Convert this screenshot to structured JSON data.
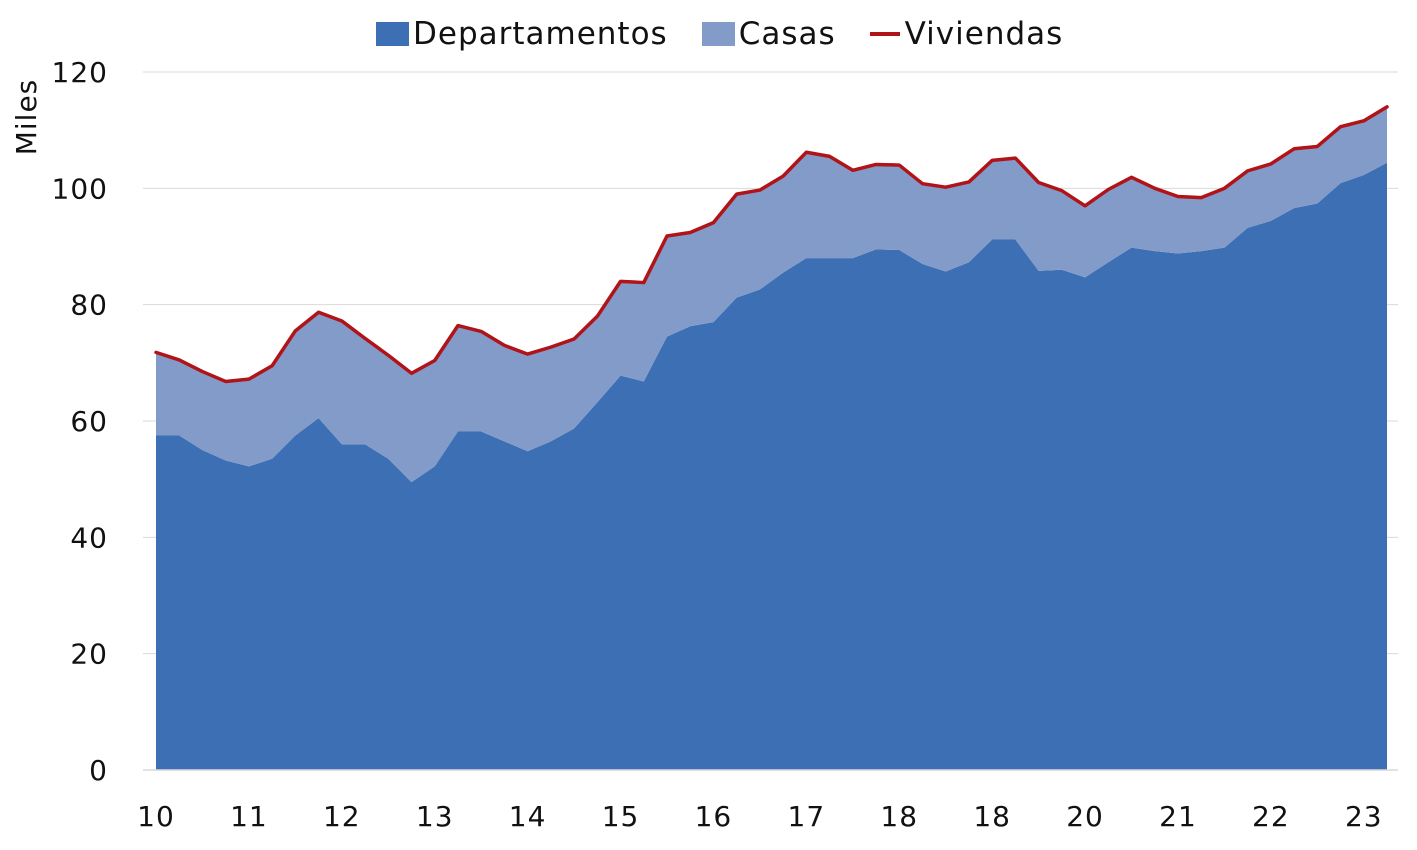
{
  "chart_data": {
    "type": "area",
    "ylabel": "Miles",
    "ylim": [
      0,
      120
    ],
    "yticks": [
      0,
      20,
      40,
      60,
      80,
      100,
      120
    ],
    "grid": true,
    "legend_position": "top-center",
    "x_tick_labels": [
      "10",
      "11",
      "12",
      "13",
      "14",
      "15",
      "16",
      "17",
      "18",
      "18",
      "20",
      "21",
      "22",
      "23"
    ],
    "series": [
      {
        "name": "Departamentos",
        "kind": "area",
        "color": "#3D6FB4",
        "values": [
          57.5,
          57.5,
          55.0,
          53.2,
          52.2,
          53.5,
          57.5,
          60.5,
          56.0,
          56.0,
          53.5,
          49.5,
          52.2,
          58.2,
          58.2,
          56.5,
          54.8,
          56.5,
          58.7,
          63.2,
          67.8,
          66.8,
          74.5,
          76.3,
          77.0,
          81.2,
          82.6,
          85.5,
          88.0,
          88.0,
          88.0,
          89.5,
          89.4,
          87.0,
          85.7,
          87.3,
          91.2,
          91.2,
          85.8,
          86.0,
          84.7,
          87.3,
          89.8,
          89.2,
          88.8,
          89.2,
          89.8,
          93.2,
          94.4,
          96.6,
          97.4,
          100.9,
          102.3,
          104.4
        ]
      },
      {
        "name": "Casas",
        "kind": "area",
        "color": "#829BC8",
        "values": [
          14.3,
          13.0,
          13.5,
          13.6,
          15.0,
          16.0,
          18.0,
          18.2,
          21.2,
          18.2,
          17.8,
          18.7,
          18.2,
          18.2,
          17.2,
          16.5,
          16.7,
          16.2,
          15.4,
          14.8,
          16.2,
          17.0,
          17.3,
          16.1,
          17.1,
          17.8,
          17.1,
          16.6,
          18.2,
          17.5,
          15.1,
          14.6,
          14.6,
          13.8,
          14.5,
          13.8,
          13.6,
          14.0,
          15.2,
          13.6,
          12.3,
          12.5,
          12.1,
          10.8,
          9.8,
          9.2,
          10.2,
          9.8,
          9.8,
          10.2,
          9.8,
          9.7,
          9.3,
          9.6
        ]
      },
      {
        "name": "Viviendas",
        "kind": "line",
        "color": "#B01318",
        "values": [
          71.8,
          70.5,
          68.5,
          66.8,
          67.2,
          69.5,
          75.5,
          78.7,
          77.2,
          74.2,
          71.3,
          68.2,
          70.4,
          76.4,
          75.4,
          73.0,
          71.5,
          72.7,
          74.1,
          78.0,
          84.0,
          83.8,
          91.8,
          92.4,
          94.1,
          99.0,
          99.7,
          102.1,
          106.2,
          105.5,
          103.1,
          104.1,
          104.0,
          100.8,
          100.2,
          101.1,
          104.8,
          105.2,
          101.0,
          99.6,
          97.0,
          99.8,
          101.9,
          100.0,
          98.6,
          98.4,
          100.0,
          103.0,
          104.2,
          106.8,
          107.2,
          110.6,
          111.6,
          114.0
        ]
      }
    ]
  }
}
